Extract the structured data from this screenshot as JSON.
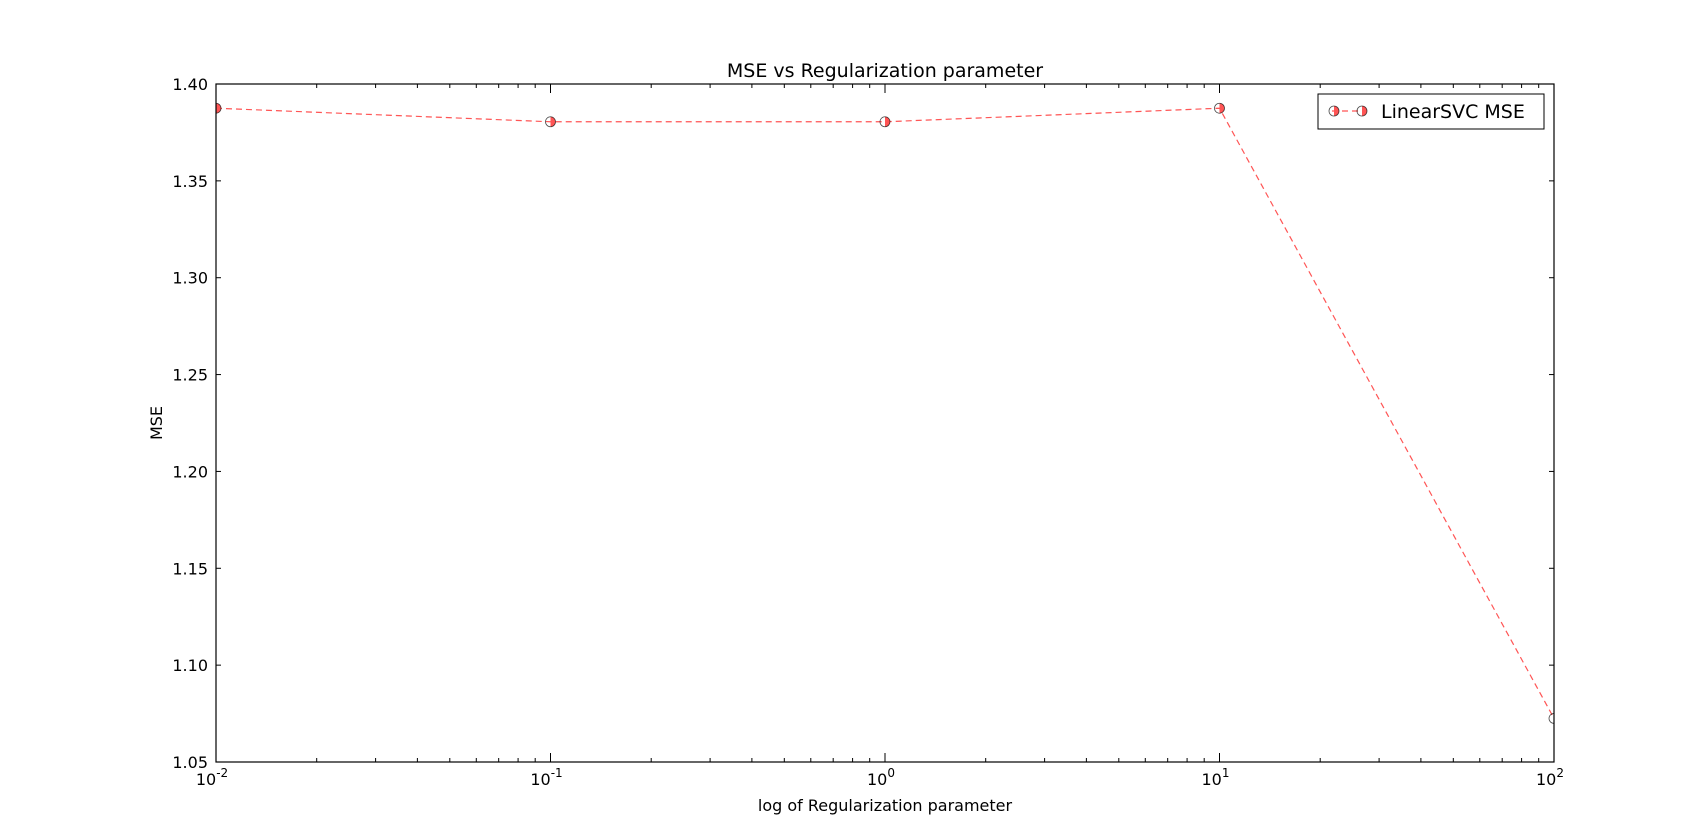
{
  "chart_data": {
    "type": "line",
    "title": "MSE vs Regularization parameter",
    "xlabel": "log of Regularization parameter",
    "ylabel": "MSE",
    "xscale": "log",
    "xlim": [
      0.01,
      100
    ],
    "ylim": [
      1.05,
      1.4
    ],
    "x_ticks": [
      {
        "value": 0.01,
        "base": "10",
        "exp": "-2"
      },
      {
        "value": 0.1,
        "base": "10",
        "exp": "-1"
      },
      {
        "value": 1,
        "base": "10",
        "exp": "0"
      },
      {
        "value": 10,
        "base": "10",
        "exp": "1"
      },
      {
        "value": 100,
        "base": "10",
        "exp": "2"
      }
    ],
    "y_ticks": [
      {
        "value": 1.05,
        "label": "1.05"
      },
      {
        "value": 1.1,
        "label": "1.10"
      },
      {
        "value": 1.15,
        "label": "1.15"
      },
      {
        "value": 1.2,
        "label": "1.20"
      },
      {
        "value": 1.25,
        "label": "1.25"
      },
      {
        "value": 1.3,
        "label": "1.30"
      },
      {
        "value": 1.35,
        "label": "1.35"
      },
      {
        "value": 1.4,
        "label": "1.40"
      }
    ],
    "grid": false,
    "legend": "top-right",
    "series": [
      {
        "name": "LinearSVC MSE",
        "color": "#ff5555",
        "line_style": "dashed",
        "marker": "half-filled-circle",
        "x": [
          0.01,
          0.1,
          1,
          10,
          100
        ],
        "y": [
          1.3875,
          1.3805,
          1.3805,
          1.3875,
          1.0725
        ]
      }
    ]
  }
}
